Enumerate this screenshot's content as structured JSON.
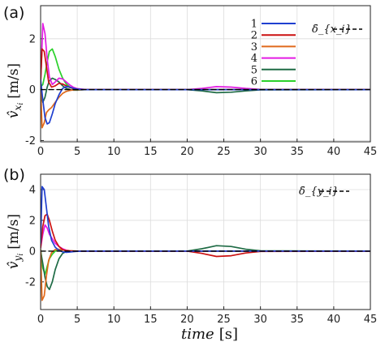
{
  "chart_data": [
    {
      "type": "line",
      "panel_label": "(a)",
      "ylabel": "v̂_{x_i} [m/s]",
      "ylabel_main": "v̂",
      "ylabel_sub": "x",
      "ylabel_subsub": "i",
      "ylabel_unit": "[m/s]",
      "xlabel": "",
      "xlim": [
        0,
        45
      ],
      "ylim": [
        -2.05,
        3.3
      ],
      "xticks": [
        "0",
        "5",
        "10",
        "15",
        "20",
        "25",
        "30",
        "35",
        "40",
        "45"
      ],
      "yticks": [
        "-2",
        "0",
        "2"
      ],
      "grid": true,
      "legend_placement": "top-right",
      "series": [
        {
          "name": "1",
          "color": "#1f3fd0",
          "x": [
            0,
            0.3,
            0.6,
            0.9,
            1.2,
            1.6,
            2.0,
            2.5,
            3,
            3.5,
            4,
            4.5,
            5,
            6,
            7,
            45
          ],
          "y": [
            0.4,
            -0.4,
            -1.1,
            -1.35,
            -1.3,
            -0.95,
            -0.55,
            -0.2,
            0.05,
            0.12,
            0.1,
            0.05,
            0.02,
            0,
            0,
            0
          ]
        },
        {
          "name": "2",
          "color": "#cc1111",
          "x": [
            0,
            0.2,
            0.5,
            0.8,
            1.1,
            1.5,
            2,
            2.5,
            3,
            3.5,
            4,
            4.5,
            5,
            6,
            7,
            45
          ],
          "y": [
            0.3,
            1.6,
            1.5,
            0.9,
            0.3,
            0.1,
            0.15,
            0.25,
            0.22,
            0.15,
            0.08,
            0.04,
            0.02,
            0,
            0,
            0
          ]
        },
        {
          "name": "3",
          "color": "#e06a1c",
          "x": [
            0,
            0.2,
            0.5,
            0.8,
            1.1,
            1.5,
            2,
            2.5,
            3,
            3.5,
            4,
            4.5,
            5,
            6,
            7,
            45
          ],
          "y": [
            0.2,
            -1.5,
            -1.3,
            -0.9,
            -0.8,
            -0.7,
            -0.5,
            -0.3,
            -0.15,
            -0.07,
            -0.03,
            -0.01,
            0,
            0,
            0,
            0
          ]
        },
        {
          "name": "4",
          "color": "#e31be3",
          "x": [
            0,
            0.3,
            0.6,
            0.9,
            1.2,
            1.6,
            2,
            2.5,
            3,
            3.5,
            4,
            4.5,
            5,
            6,
            7,
            20,
            22,
            24,
            26,
            28,
            30,
            45
          ],
          "y": [
            0.2,
            2.6,
            2.2,
            1.2,
            0.5,
            0.2,
            0.3,
            0.45,
            0.42,
            0.3,
            0.18,
            0.09,
            0.04,
            0.01,
            0,
            0,
            0.05,
            0.12,
            0.1,
            0.05,
            0.01,
            0
          ]
        },
        {
          "name": "5",
          "color": "#1e6b45",
          "x": [
            0,
            0.3,
            0.6,
            0.9,
            1.2,
            1.6,
            2,
            2.5,
            3,
            3.5,
            4,
            4.5,
            5,
            6,
            7,
            20,
            22,
            24,
            26,
            28,
            30,
            45
          ],
          "y": [
            0.1,
            -0.5,
            -0.3,
            0.1,
            0.35,
            0.45,
            0.4,
            0.3,
            0.15,
            0.05,
            0,
            -0.02,
            -0.02,
            0,
            0,
            0,
            -0.05,
            -0.12,
            -0.1,
            -0.05,
            -0.01,
            0
          ]
        },
        {
          "name": "6",
          "color": "#2bd12b",
          "x": [
            0,
            0.3,
            0.6,
            0.9,
            1.2,
            1.6,
            2,
            2.5,
            3,
            3.5,
            4,
            4.5,
            5,
            6,
            7,
            45
          ],
          "y": [
            0.1,
            0.2,
            0.6,
            1.1,
            1.5,
            1.6,
            1.3,
            0.8,
            0.45,
            0.22,
            0.1,
            0.04,
            0.01,
            0,
            0,
            0
          ]
        },
        {
          "name": "δ̇_{x_i}",
          "color": "#000000",
          "dashed": true,
          "x": [
            0,
            45
          ],
          "y": [
            0,
            0
          ]
        }
      ]
    },
    {
      "type": "line",
      "panel_label": "(b)",
      "ylabel": "v̂_{y_i} [m/s]",
      "ylabel_main": "v̂",
      "ylabel_sub": "y",
      "ylabel_subsub": "i",
      "ylabel_unit": "[m/s]",
      "xlabel": "time [s]",
      "xlabel_main": "time",
      "xlabel_unit": "[s]",
      "xlim": [
        0,
        45
      ],
      "ylim": [
        -3.8,
        5.0
      ],
      "xticks": [
        "0",
        "5",
        "10",
        "15",
        "20",
        "25",
        "30",
        "35",
        "40",
        "45"
      ],
      "yticks": [
        "-2",
        "0",
        "2",
        "4"
      ],
      "grid": true,
      "legend_placement": "top-right",
      "series": [
        {
          "name": "1",
          "color": "#1f3fd0",
          "x": [
            0,
            0.2,
            0.5,
            0.8,
            1.1,
            1.5,
            2,
            2.5,
            3,
            3.5,
            4,
            4.5,
            5,
            6,
            7,
            45
          ],
          "y": [
            0.5,
            4.2,
            4.0,
            2.8,
            1.6,
            0.7,
            0.25,
            0.05,
            -0.05,
            -0.08,
            -0.06,
            -0.03,
            -0.01,
            0,
            0,
            0
          ]
        },
        {
          "name": "2",
          "color": "#cc1111",
          "x": [
            0,
            0.3,
            0.6,
            0.9,
            1.2,
            1.6,
            2,
            2.5,
            3,
            3.5,
            4,
            4.5,
            5,
            6,
            7,
            20,
            22,
            24,
            26,
            28,
            30,
            45
          ],
          "y": [
            0.2,
            1.6,
            2.3,
            2.4,
            2.0,
            1.3,
            0.7,
            0.3,
            0.1,
            0.02,
            0,
            0,
            0,
            0,
            0,
            0,
            -0.15,
            -0.35,
            -0.3,
            -0.12,
            -0.02,
            0
          ]
        },
        {
          "name": "3",
          "color": "#e06a1c",
          "x": [
            0,
            0.2,
            0.5,
            0.8,
            1.1,
            1.5,
            2,
            2.5,
            3,
            3.5,
            4,
            4.5,
            5,
            6,
            7,
            45
          ],
          "y": [
            0.1,
            -3.2,
            -2.9,
            -1.6,
            -0.6,
            -0.1,
            0.1,
            0.12,
            0.08,
            0.04,
            0.02,
            0.01,
            0,
            0,
            0,
            0
          ]
        },
        {
          "name": "4",
          "color": "#e31be3",
          "x": [
            0,
            0.3,
            0.6,
            0.9,
            1.2,
            1.6,
            2,
            2.5,
            3,
            3.5,
            4,
            4.5,
            5,
            6,
            7,
            45
          ],
          "y": [
            0.2,
            1.1,
            1.7,
            1.5,
            1.1,
            0.8,
            0.5,
            0.3,
            0.15,
            0.06,
            0.02,
            0,
            0,
            0,
            0,
            0
          ]
        },
        {
          "name": "5",
          "color": "#1e6b45",
          "x": [
            0,
            0.3,
            0.6,
            0.9,
            1.2,
            1.6,
            2,
            2.5,
            3,
            3.5,
            4,
            4.5,
            5,
            6,
            7,
            20,
            22,
            24,
            26,
            28,
            30,
            45
          ],
          "y": [
            0,
            -0.8,
            -1.7,
            -2.3,
            -2.5,
            -2.0,
            -1.2,
            -0.5,
            -0.15,
            -0.02,
            0,
            0,
            0,
            0,
            0,
            0,
            0.15,
            0.35,
            0.3,
            0.12,
            0.02,
            0
          ]
        },
        {
          "name": "6",
          "color": "#2bd12b",
          "x": [
            0,
            0.3,
            0.6,
            0.9,
            1.2,
            1.6,
            2,
            2.5,
            3,
            3.5,
            4,
            4.5,
            5,
            6,
            7,
            45
          ],
          "y": [
            0.1,
            -1.1,
            -1.5,
            -1.0,
            -0.5,
            -0.2,
            0,
            0.08,
            0.08,
            0.05,
            0.02,
            0.01,
            0,
            0,
            0,
            0
          ]
        },
        {
          "name": "δ̇_{y_i}",
          "color": "#000000",
          "dashed": true,
          "x": [
            0,
            45
          ],
          "y": [
            0,
            0
          ]
        }
      ]
    }
  ]
}
